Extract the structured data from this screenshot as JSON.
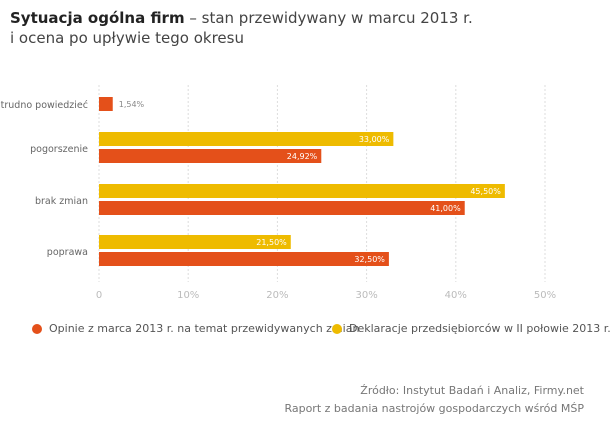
{
  "title": {
    "bold": "Sytuacja ogólna firm",
    "rest_line1": " – stan przewidywany w marcu 2013 r.",
    "line2": "i ocena po upływie tego okresu"
  },
  "colors": {
    "orange": "#e4501a",
    "yellow": "#eebb00",
    "grid": "#dddddd"
  },
  "chart_data": {
    "type": "bar",
    "orientation": "horizontal",
    "categories": [
      "trudno powiedzieć",
      "pogorszenie",
      "brak zmian",
      "poprawa"
    ],
    "series": [
      {
        "name": "Deklaracje przedsiębiorców w II połowie 2013 r.",
        "color": "#eebb00",
        "values": [
          null,
          33.0,
          45.5,
          21.5
        ],
        "labels": [
          "",
          "33,00%",
          "45,50%",
          "21,50%"
        ]
      },
      {
        "name": "Opinie z marca 2013 r. na temat przewidywanych zmian",
        "color": "#e4501a",
        "values": [
          1.54,
          24.92,
          41.0,
          32.5
        ],
        "labels": [
          "1,54%",
          "24,92%",
          "41,00%",
          "32,50%"
        ]
      }
    ],
    "xlim": [
      0,
      50
    ],
    "xticks": [
      0,
      10,
      20,
      30,
      40,
      50
    ],
    "xtick_labels": [
      "0",
      "10%",
      "20%",
      "30%",
      "40%",
      "50%"
    ],
    "grid": true,
    "legend_position": "bottom"
  },
  "legend": [
    {
      "label": "Opinie z marca 2013 r. na temat przewidywanych zmian",
      "color": "#e4501a"
    },
    {
      "label": "Deklaracje przedsiębiorców w II połowie 2013 r.",
      "color": "#eebb00"
    }
  ],
  "source": {
    "line1": "Źródło: Instytut Badań i Analiz, Firmy.net",
    "line2": "Raport z badania nastrojów gospodarczych wśród MŚP"
  }
}
